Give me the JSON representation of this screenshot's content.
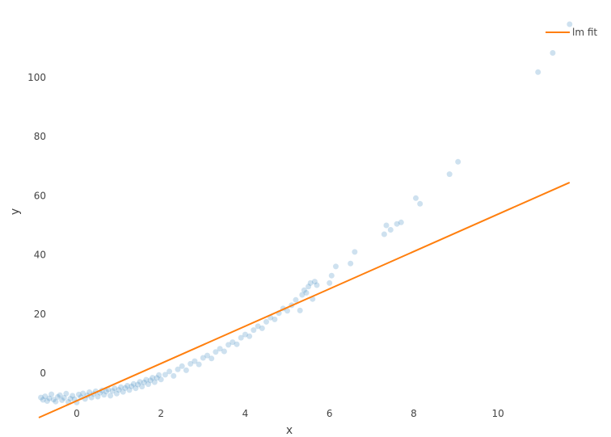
{
  "chart_data": {
    "type": "scatter",
    "xlabel": "x",
    "ylabel": "y",
    "xlim": [
      -0.9,
      11.8
    ],
    "ylim": [
      -15,
      118
    ],
    "xticks": [
      0,
      2,
      4,
      6,
      8,
      10
    ],
    "yticks": [
      0,
      20,
      40,
      60,
      80,
      100
    ],
    "grid": false,
    "legend_position": "top-right",
    "colors": {
      "points": "#1f77b4",
      "fit_line": "#ff7f0e"
    },
    "series": [
      {
        "type": "scatter",
        "points": [
          [
            -0.85,
            -8.2
          ],
          [
            -0.8,
            -9.0
          ],
          [
            -0.75,
            -7.8
          ],
          [
            -0.7,
            -9.4
          ],
          [
            -0.65,
            -8.5
          ],
          [
            -0.6,
            -7.1
          ],
          [
            -0.55,
            -8.9
          ],
          [
            -0.5,
            -9.6
          ],
          [
            -0.45,
            -8.0
          ],
          [
            -0.4,
            -7.4
          ],
          [
            -0.35,
            -9.1
          ],
          [
            -0.3,
            -8.3
          ],
          [
            -0.25,
            -6.9
          ],
          [
            -0.2,
            -9.7
          ],
          [
            -0.15,
            -8.6
          ],
          [
            -0.1,
            -7.6
          ],
          [
            -0.05,
            -8.8
          ],
          [
            0.0,
            -9.9
          ],
          [
            0.05,
            -7.2
          ],
          [
            0.1,
            -8.1
          ],
          [
            0.15,
            -6.8
          ],
          [
            0.2,
            -8.7
          ],
          [
            0.25,
            -7.5
          ],
          [
            0.3,
            -6.4
          ],
          [
            0.35,
            -8.2
          ],
          [
            0.4,
            -7.0
          ],
          [
            0.45,
            -6.1
          ],
          [
            0.5,
            -7.9
          ],
          [
            0.55,
            -6.6
          ],
          [
            0.6,
            -5.8
          ],
          [
            0.65,
            -7.3
          ],
          [
            0.7,
            -6.2
          ],
          [
            0.75,
            -5.5
          ],
          [
            0.8,
            -7.6
          ],
          [
            0.85,
            -6.0
          ],
          [
            0.9,
            -5.1
          ],
          [
            0.95,
            -6.9
          ],
          [
            1.0,
            -5.6
          ],
          [
            1.05,
            -4.7
          ],
          [
            1.1,
            -6.3
          ],
          [
            1.15,
            -5.0
          ],
          [
            1.2,
            -4.2
          ],
          [
            1.25,
            -5.7
          ],
          [
            1.3,
            -4.4
          ],
          [
            1.35,
            -3.6
          ],
          [
            1.4,
            -5.1
          ],
          [
            1.45,
            -3.8
          ],
          [
            1.5,
            -2.9
          ],
          [
            1.55,
            -4.5
          ],
          [
            1.6,
            -3.1
          ],
          [
            1.65,
            -2.2
          ],
          [
            1.7,
            -3.7
          ],
          [
            1.75,
            -2.4
          ],
          [
            1.8,
            -1.5
          ],
          [
            1.85,
            -3.0
          ],
          [
            1.9,
            -1.6
          ],
          [
            1.95,
            -0.6
          ],
          [
            2.0,
            -2.1
          ],
          [
            2.1,
            -0.5
          ],
          [
            2.2,
            0.6
          ],
          [
            2.3,
            -0.9
          ],
          [
            2.4,
            1.3
          ],
          [
            2.5,
            2.4
          ],
          [
            2.6,
            1.0
          ],
          [
            2.7,
            3.2
          ],
          [
            2.8,
            4.1
          ],
          [
            2.9,
            3.0
          ],
          [
            3.0,
            5.2
          ],
          [
            3.1,
            6.0
          ],
          [
            3.2,
            5.0
          ],
          [
            3.3,
            7.2
          ],
          [
            3.4,
            8.3
          ],
          [
            3.5,
            7.4
          ],
          [
            3.6,
            9.6
          ],
          [
            3.7,
            10.5
          ],
          [
            3.8,
            9.8
          ],
          [
            3.9,
            12.0
          ],
          [
            4.0,
            13.1
          ],
          [
            4.1,
            12.5
          ],
          [
            4.2,
            14.6
          ],
          [
            4.3,
            15.9
          ],
          [
            4.4,
            15.2
          ],
          [
            4.5,
            17.4
          ],
          [
            4.6,
            18.8
          ],
          [
            4.7,
            18.2
          ],
          [
            4.8,
            20.3
          ],
          [
            4.9,
            21.9
          ],
          [
            5.0,
            21.1
          ],
          [
            5.1,
            23.0
          ],
          [
            5.2,
            24.8
          ],
          [
            5.3,
            21.2
          ],
          [
            5.35,
            26.5
          ],
          [
            5.4,
            28.1
          ],
          [
            5.45,
            27.2
          ],
          [
            5.5,
            29.3
          ],
          [
            5.55,
            30.5
          ],
          [
            5.6,
            25.1
          ],
          [
            5.65,
            31.0
          ],
          [
            5.7,
            29.8
          ],
          [
            6.0,
            30.5
          ],
          [
            6.05,
            33.0
          ],
          [
            6.15,
            36.1
          ],
          [
            6.5,
            37.1
          ],
          [
            6.6,
            41.0
          ],
          [
            7.3,
            47.0
          ],
          [
            7.35,
            50.0
          ],
          [
            7.45,
            48.5
          ],
          [
            7.6,
            50.5
          ],
          [
            7.7,
            51.0
          ],
          [
            8.05,
            59.2
          ],
          [
            8.15,
            57.3
          ],
          [
            8.85,
            67.3
          ],
          [
            9.05,
            71.5
          ],
          [
            10.95,
            101.8
          ],
          [
            11.3,
            108.3
          ],
          [
            11.7,
            118.0
          ]
        ]
      },
      {
        "type": "line",
        "name": "lm fit",
        "points": [
          [
            -0.9,
            -15.0
          ],
          [
            11.7,
            64.5
          ]
        ]
      }
    ]
  }
}
